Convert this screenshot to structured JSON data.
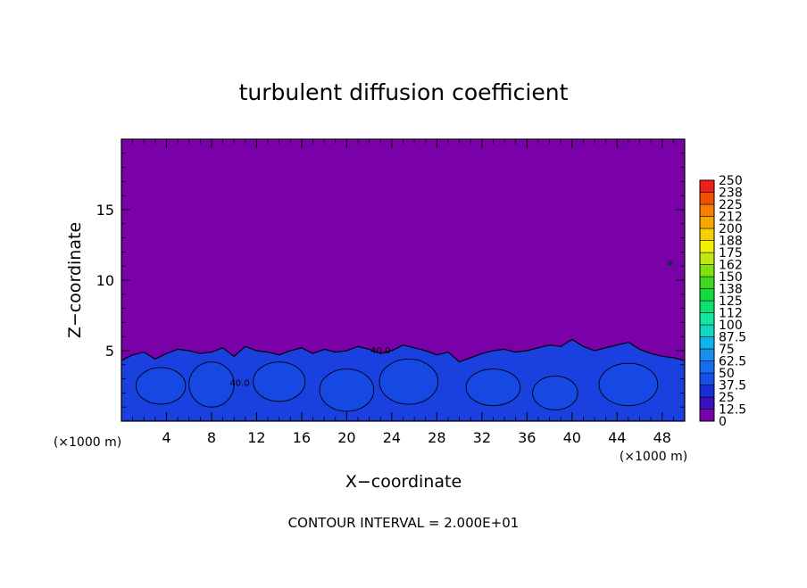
{
  "chart_data": {
    "type": "heatmap",
    "title": "turbulent diffusion coefficient",
    "xlabel": "X−coordinate",
    "ylabel": "Z−coordinate",
    "x_unit_left": "(×1000 m)",
    "x_unit_right": "(×1000 m)",
    "footer": "CONTOUR INTERVAL = 2.000E+01",
    "xlim": [
      0,
      50
    ],
    "ylim": [
      0,
      20
    ],
    "x_ticks": [
      4,
      8,
      12,
      16,
      20,
      24,
      28,
      32,
      36,
      40,
      44,
      48
    ],
    "y_ticks": [
      5,
      10,
      15
    ],
    "contour_labels": [
      "40.0",
      "40.0"
    ],
    "colorbar": {
      "ticks": [
        "0",
        "12.5",
        "25",
        "37.5",
        "50",
        "62.5",
        "75",
        "87.5",
        "100",
        "112",
        "125",
        "138",
        "150",
        "162",
        "175",
        "188",
        "200",
        "212",
        "225",
        "238",
        "250"
      ],
      "colors": [
        "#7a00a8",
        "#3a10c0",
        "#1a2ed8",
        "#1450e8",
        "#1470f0",
        "#1890f0",
        "#10b4e8",
        "#10d8c0",
        "#10e8a0",
        "#10e070",
        "#18d840",
        "#40d820",
        "#80e010",
        "#c0e810",
        "#f0f000",
        "#f8d000",
        "#f8a800",
        "#f88000",
        "#f05000",
        "#f02018",
        "#f08080"
      ]
    },
    "background_color": "#7a00a8",
    "layer_color": "#1a40e0",
    "region_profile": {
      "x": [
        0,
        1,
        2,
        3,
        4,
        5,
        6,
        7,
        8,
        9,
        10,
        11,
        12,
        13,
        14,
        15,
        16,
        17,
        18,
        19,
        20,
        21,
        22,
        23,
        24,
        25,
        26,
        27,
        28,
        29,
        30,
        31,
        32,
        33,
        34,
        35,
        36,
        37,
        38,
        39,
        40,
        41,
        42,
        43,
        44,
        45,
        46,
        47,
        48,
        49,
        50
      ],
      "top_z": [
        4.3,
        4.7,
        4.9,
        4.4,
        4.8,
        5.1,
        5.0,
        4.8,
        4.9,
        5.2,
        4.6,
        5.3,
        5.0,
        4.9,
        4.7,
        5.0,
        5.2,
        4.8,
        5.1,
        4.9,
        5.0,
        5.3,
        5.1,
        4.8,
        5.0,
        5.4,
        5.2,
        5.0,
        4.7,
        4.9,
        4.2,
        4.5,
        4.8,
        5.0,
        5.1,
        4.9,
        5.0,
        5.2,
        5.4,
        5.3,
        5.8,
        5.3,
        5.0,
        5.2,
        5.4,
        5.6,
        5.1,
        4.8,
        4.6,
        4.5,
        4.3
      ]
    }
  }
}
